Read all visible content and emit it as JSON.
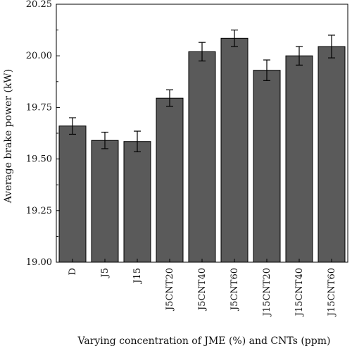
{
  "chart_data": {
    "type": "bar",
    "title": "",
    "xlabel": "Varying concentration of JME (%) and CNTs (ppm)",
    "ylabel": "Average brake power (kW)",
    "ylim": [
      19.0,
      20.25
    ],
    "yticks": [
      "19.00",
      "19.25",
      "19.50",
      "19.75",
      "20.00",
      "20.25"
    ],
    "categories": [
      "D",
      "J5",
      "J15",
      "J5CNT20",
      "J5CNT40",
      "J5CNT60",
      "J15CNT20",
      "J15CNT40",
      "J15CNT60"
    ],
    "values": [
      19.66,
      19.59,
      19.585,
      19.795,
      20.02,
      20.085,
      19.93,
      20.0,
      20.045
    ],
    "errors": [
      0.04,
      0.04,
      0.05,
      0.04,
      0.045,
      0.04,
      0.05,
      0.045,
      0.055
    ],
    "bar_color": "#5a5a5a",
    "grid": false,
    "legend": "none"
  }
}
